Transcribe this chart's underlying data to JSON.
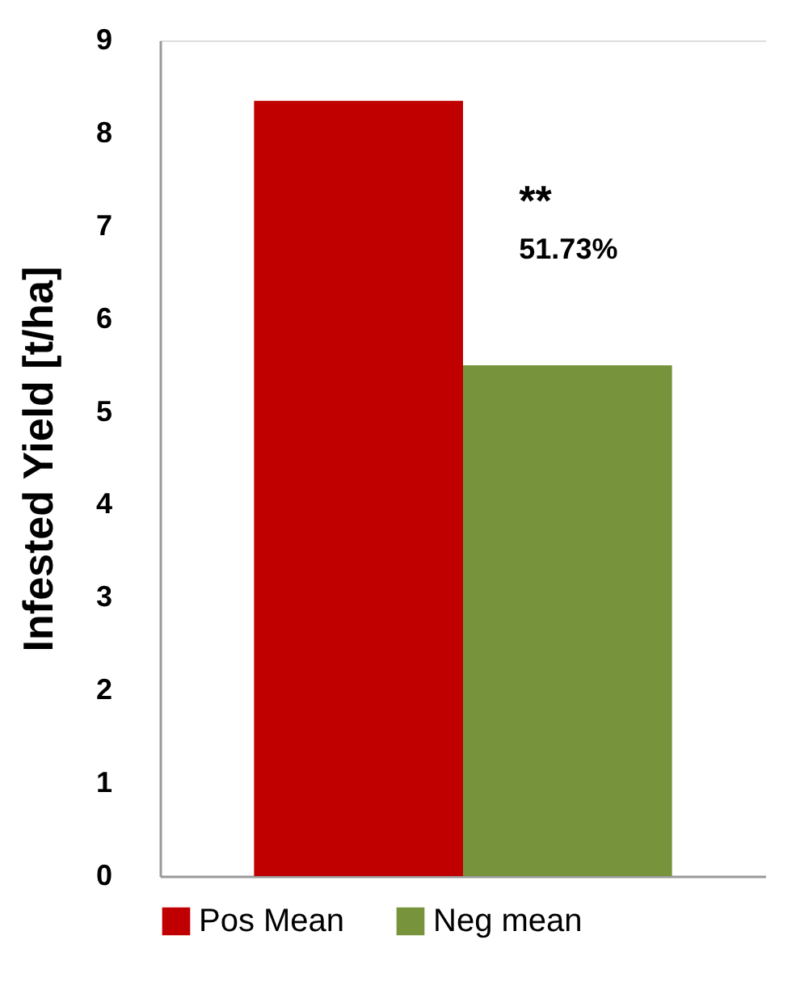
{
  "chart_data": {
    "type": "bar",
    "categories": [
      null
    ],
    "ylabel": "Infested Yield [t/ha]",
    "series": [
      {
        "name": "Pos Mean",
        "color": "#c00000",
        "values": [
          8.35
        ]
      },
      {
        "name": "Neg mean",
        "color": "#77933c",
        "values": [
          5.5
        ]
      }
    ],
    "ylim": [
      0,
      9
    ],
    "yticks": [
      0,
      1,
      2,
      3,
      4,
      5,
      6,
      7,
      8,
      9
    ],
    "grid": false,
    "legend": "bottom",
    "annotations": [
      "**",
      "51.73%"
    ]
  }
}
